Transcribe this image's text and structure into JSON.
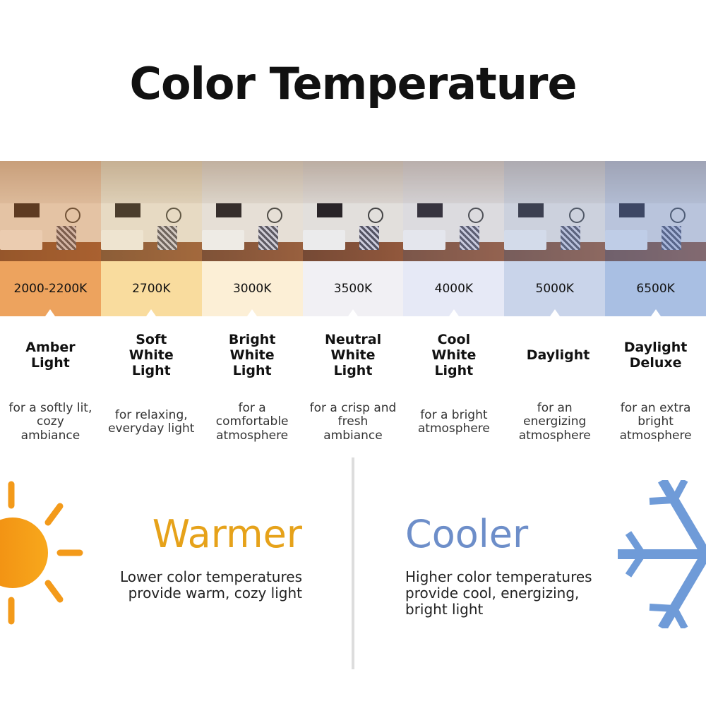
{
  "title": "Color Temperature",
  "temperatures": [
    {
      "kelvin": "2000-2200K",
      "name": "Amber Light",
      "desc": "for a softly lit, cozy ambiance",
      "color": "#eda35e",
      "tint": "rgba(230,140,60,0.35)"
    },
    {
      "kelvin": "2700K",
      "name": "Soft White Light",
      "desc": "for relaxing, everyday light",
      "color": "#f9dc9e",
      "tint": "rgba(240,200,120,0.25)"
    },
    {
      "kelvin": "3000K",
      "name": "Bright White Light",
      "desc": "for a comfortable atmosphere",
      "color": "#fcefd6",
      "tint": "rgba(240,220,180,0.15)"
    },
    {
      "kelvin": "3500K",
      "name": "Neutral White Light",
      "desc": "for a crisp and fresh ambiance",
      "color": "#f1f0f4",
      "tint": "rgba(220,220,230,0.1)"
    },
    {
      "kelvin": "4000K",
      "name": "Cool White Light",
      "desc": "for a bright atmosphere",
      "color": "#e6e9f6",
      "tint": "rgba(190,200,235,0.2)"
    },
    {
      "kelvin": "5000K",
      "name": "Daylight",
      "desc": "for an energizing atmosphere",
      "color": "#c9d4ea",
      "tint": "rgba(150,175,225,0.3)"
    },
    {
      "kelvin": "6500K",
      "name": "Daylight Deluxe",
      "desc": "for an extra bright atmosphere",
      "color": "#a9bfe3",
      "tint": "rgba(120,155,220,0.4)"
    }
  ],
  "warmer": {
    "heading": "Warmer",
    "text": "Lower color temperatures provide warm, cozy light",
    "color": "#e6a21a",
    "icon": "sun-icon"
  },
  "cooler": {
    "heading": "Cooler",
    "text": "Higher color temperatures provide cool, energizing, bright light",
    "color": "#6d8ec9",
    "icon": "snowflake-icon"
  }
}
